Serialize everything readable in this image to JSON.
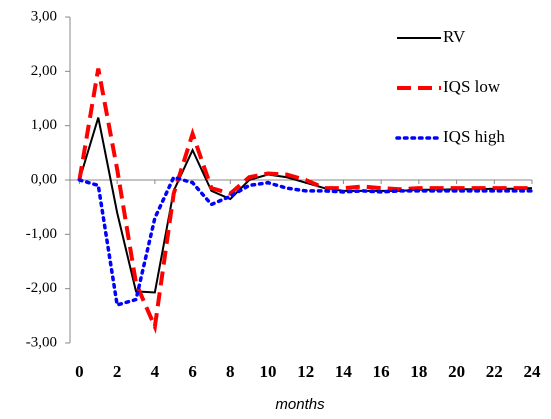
{
  "chart_data": {
    "type": "line",
    "x_label": "months",
    "x": [
      0,
      1,
      2,
      3,
      4,
      5,
      6,
      7,
      8,
      9,
      10,
      11,
      12,
      13,
      14,
      15,
      16,
      17,
      18,
      19,
      20,
      21,
      22,
      23,
      24
    ],
    "xlim": [
      -0.5,
      24
    ],
    "xticks": [
      0,
      2,
      4,
      6,
      8,
      10,
      12,
      14,
      16,
      18,
      20,
      22,
      24
    ],
    "ylim": [
      -3,
      3
    ],
    "yticks": [
      {
        "value": -3,
        "label": "-3,00"
      },
      {
        "value": -2,
        "label": "-2,00"
      },
      {
        "value": -1,
        "label": "-1,00"
      },
      {
        "value": 0,
        "label": "0,00"
      },
      {
        "value": 1,
        "label": "1,00"
      },
      {
        "value": 2,
        "label": "2,00"
      },
      {
        "value": 3,
        "label": "3,00"
      }
    ],
    "legend": "top-right",
    "series": [
      {
        "name": "RV",
        "color": "#000000",
        "style": "solid",
        "values": [
          0,
          1.15,
          -0.6,
          -2.05,
          -2.07,
          -0.2,
          0.55,
          -0.2,
          -0.35,
          0.0,
          0.1,
          0.05,
          -0.05,
          -0.15,
          -0.2,
          -0.2,
          -0.2,
          -0.2,
          -0.18,
          -0.18,
          -0.17,
          -0.17,
          -0.16,
          -0.16,
          -0.15
        ]
      },
      {
        "name": "IQS low",
        "color": "#ff0000",
        "style": "dashed",
        "values": [
          0,
          2.05,
          0.2,
          -1.9,
          -2.7,
          -0.25,
          0.85,
          -0.15,
          -0.25,
          0.05,
          0.12,
          0.1,
          0.0,
          -0.15,
          -0.15,
          -0.12,
          -0.15,
          -0.17,
          -0.15,
          -0.15,
          -0.15,
          -0.15,
          -0.15,
          -0.15,
          -0.15
        ]
      },
      {
        "name": "IQS high",
        "color": "#0000ff",
        "style": "dotted",
        "values": [
          0,
          -0.1,
          -2.3,
          -2.2,
          -0.7,
          0.05,
          -0.05,
          -0.45,
          -0.3,
          -0.1,
          -0.05,
          -0.15,
          -0.2,
          -0.2,
          -0.22,
          -0.2,
          -0.22,
          -0.2,
          -0.2,
          -0.2,
          -0.2,
          -0.2,
          -0.2,
          -0.2,
          -0.2
        ]
      }
    ]
  }
}
